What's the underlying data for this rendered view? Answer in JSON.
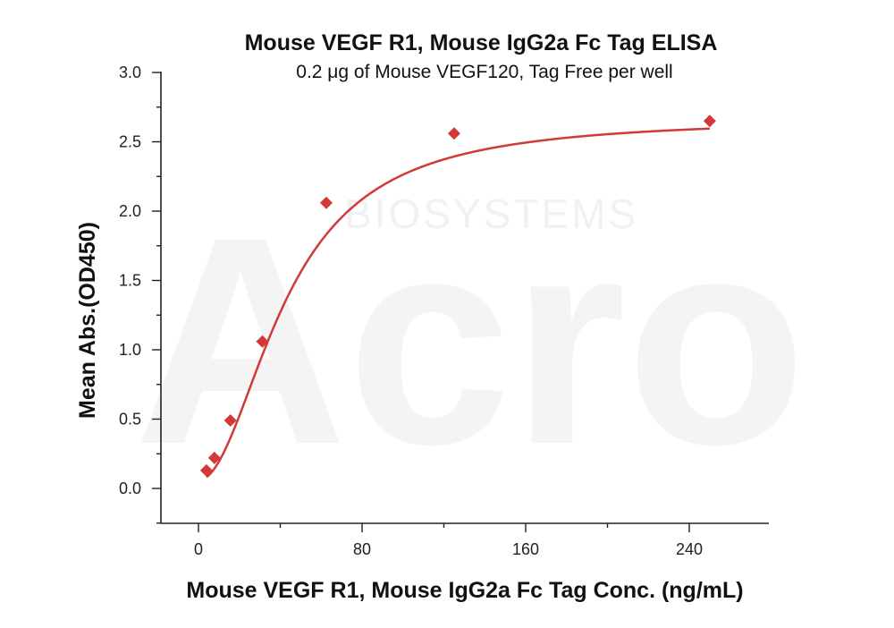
{
  "colors": {
    "series": "#d13a38",
    "axis": "#222222",
    "watermark": "#eeeeee"
  },
  "watermark": {
    "brand": "Acro",
    "sub": "BIOSYSTEMS"
  },
  "chart_data": {
    "type": "scatter",
    "title": "Mouse VEGF R1, Mouse IgG2a Fc Tag ELISA",
    "subtitle": "0.2 μg of Mouse VEGF120, Tag Free per well",
    "xlabel": "Mouse VEGF R1, Mouse IgG2a Fc Tag Conc. (ng/mL)",
    "ylabel": "Mean Abs.(OD450)",
    "xlim": [
      -20,
      280
    ],
    "ylim": [
      -0.25,
      3.0
    ],
    "x_ticks": [
      0,
      80,
      160,
      240
    ],
    "x_tick_labels": [
      "0",
      "80",
      "160",
      "240"
    ],
    "y_ticks": [
      0.0,
      0.5,
      1.0,
      1.5,
      2.0,
      2.5,
      3.0
    ],
    "y_tick_labels": [
      "0.0",
      "0.5",
      "1.0",
      "1.5",
      "2.0",
      "2.5",
      "3.0"
    ],
    "grid": false,
    "series": [
      {
        "marker": "diamond",
        "fit": "4PL",
        "x": [
          3.9,
          7.8,
          15.6,
          31.25,
          62.5,
          125,
          250
        ],
        "y": [
          0.13,
          0.22,
          0.49,
          1.06,
          2.06,
          2.56,
          2.65
        ]
      }
    ]
  }
}
